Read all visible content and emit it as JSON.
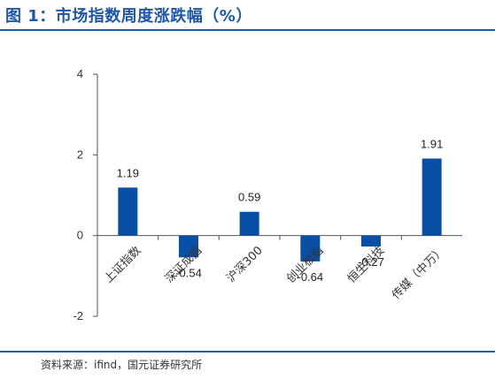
{
  "figure": {
    "title": "图 1：市场指数周度涨跌幅（%）",
    "source": "资料来源：ifind，国元证券研究所"
  },
  "chart_data": {
    "type": "bar",
    "title": "市场指数周度涨跌幅（%）",
    "categories": [
      "上证指数",
      "深证成指",
      "沪深300",
      "创业板指",
      "恒生科技",
      "传媒（中万）"
    ],
    "values": [
      1.19,
      -0.54,
      0.59,
      -0.64,
      -0.27,
      1.91
    ],
    "data_labels": [
      "1.19",
      "-0.54",
      "0.59",
      "-0.64",
      "-0.27",
      "1.91"
    ],
    "ylim": [
      -2,
      4
    ],
    "yticks": [
      -2,
      0,
      2,
      4
    ],
    "ytick_labels": [
      "-2",
      "0",
      "2",
      "4"
    ],
    "bar_color": "#0a4fa6",
    "grid": false,
    "legend": "none"
  }
}
